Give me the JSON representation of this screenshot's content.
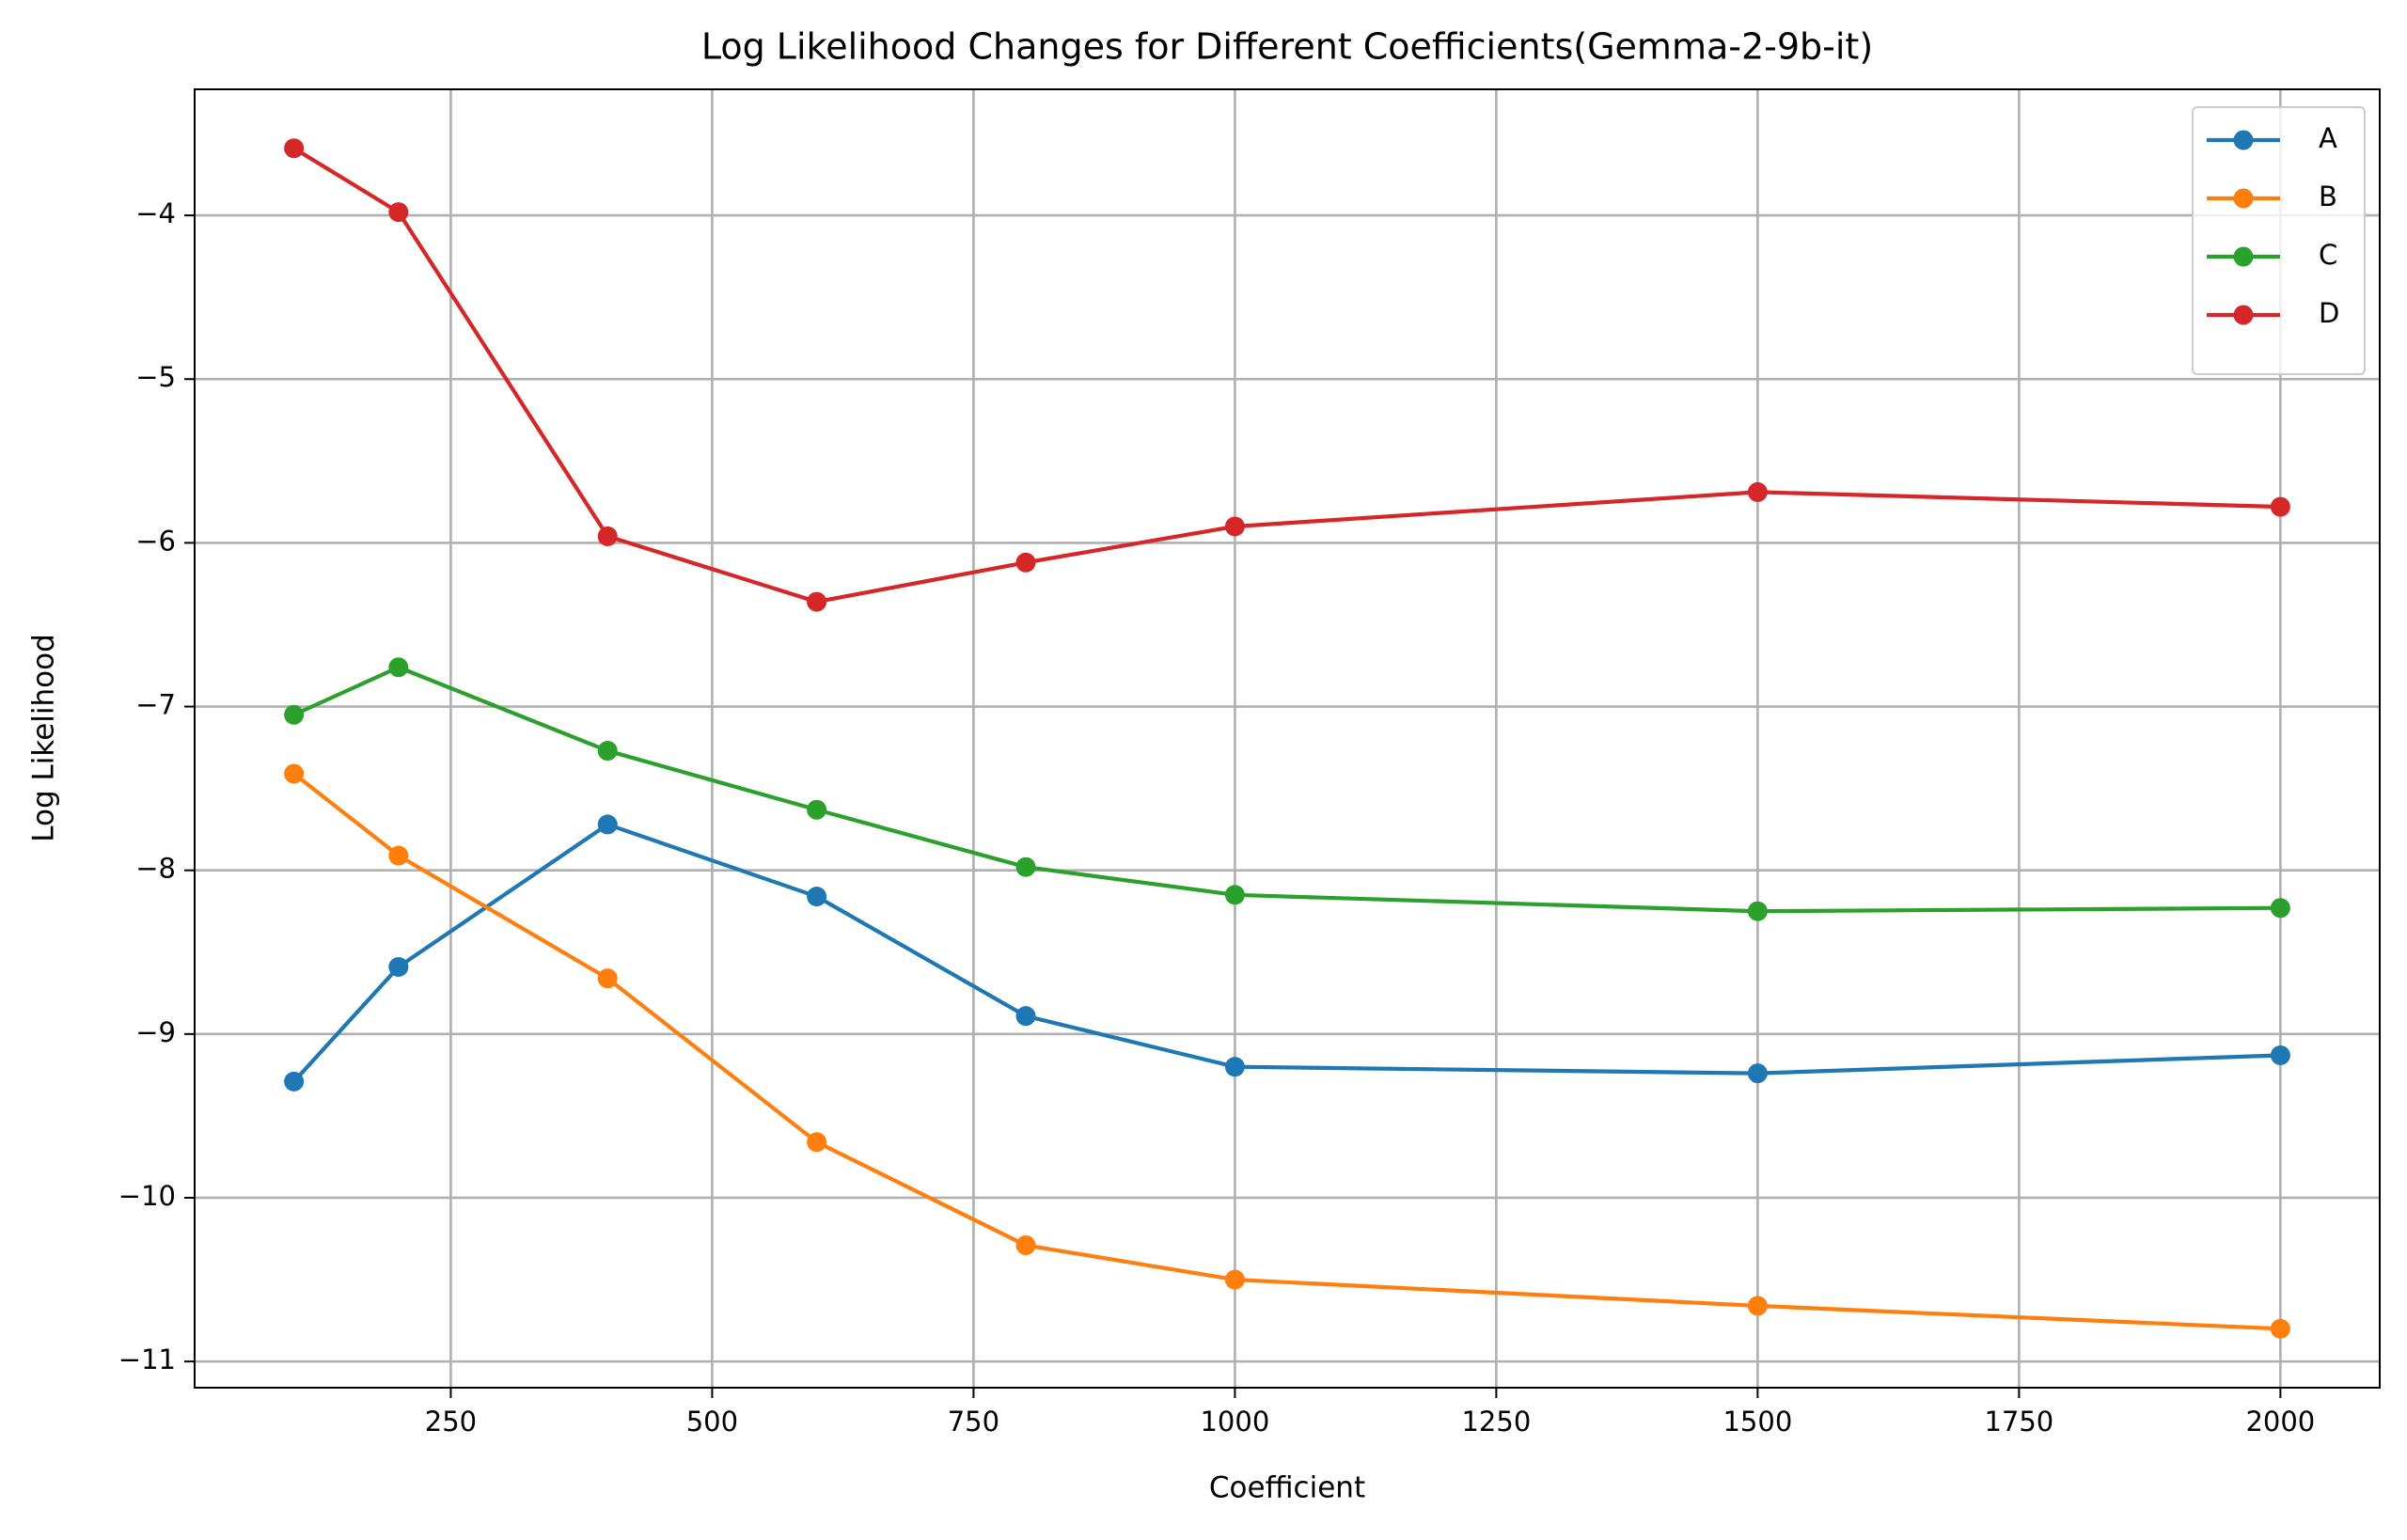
{
  "chart_data": {
    "type": "line",
    "title": "Log Likelihood Changes for Different Coefficients(Gemma-2-9b-it)",
    "x_label": "Coefficient",
    "y_label": "Log Likelihood",
    "x": [
      100,
      200,
      400,
      600,
      800,
      1000,
      1500,
      2000
    ],
    "series": [
      {
        "name": "A",
        "color": "#1f77b4",
        "values": [
          -9.29,
          -8.59,
          -7.72,
          -8.16,
          -8.89,
          -9.2,
          -9.24,
          -9.13
        ]
      },
      {
        "name": "B",
        "color": "#ff7f0e",
        "values": [
          -7.41,
          -7.91,
          -8.66,
          -9.66,
          -10.29,
          -10.5,
          -10.66,
          -10.8
        ]
      },
      {
        "name": "C",
        "color": "#2ca02c",
        "values": [
          -7.05,
          -6.76,
          -7.27,
          -7.63,
          -7.98,
          -8.15,
          -8.25,
          -8.23
        ]
      },
      {
        "name": "D",
        "color": "#d62728",
        "values": [
          -3.59,
          -3.98,
          -5.96,
          -6.36,
          -6.12,
          -5.9,
          -5.69,
          -5.78
        ]
      }
    ],
    "xlim": [
      5,
      2095
    ],
    "xticks": [
      250,
      500,
      750,
      1000,
      1250,
      1500,
      1750,
      2000
    ],
    "ylim": [
      -11.16,
      -3.23
    ],
    "yticks": [
      {
        "value": -11,
        "label": "−11"
      },
      {
        "value": -10,
        "label": "−10"
      },
      {
        "value": -9,
        "label": "−9"
      },
      {
        "value": -8,
        "label": "−8"
      },
      {
        "value": -7,
        "label": "−7"
      },
      {
        "value": -6,
        "label": "−6"
      },
      {
        "value": -5,
        "label": "−5"
      },
      {
        "value": -4,
        "label": "−4"
      }
    ],
    "grid": true,
    "legend": "upper right"
  }
}
